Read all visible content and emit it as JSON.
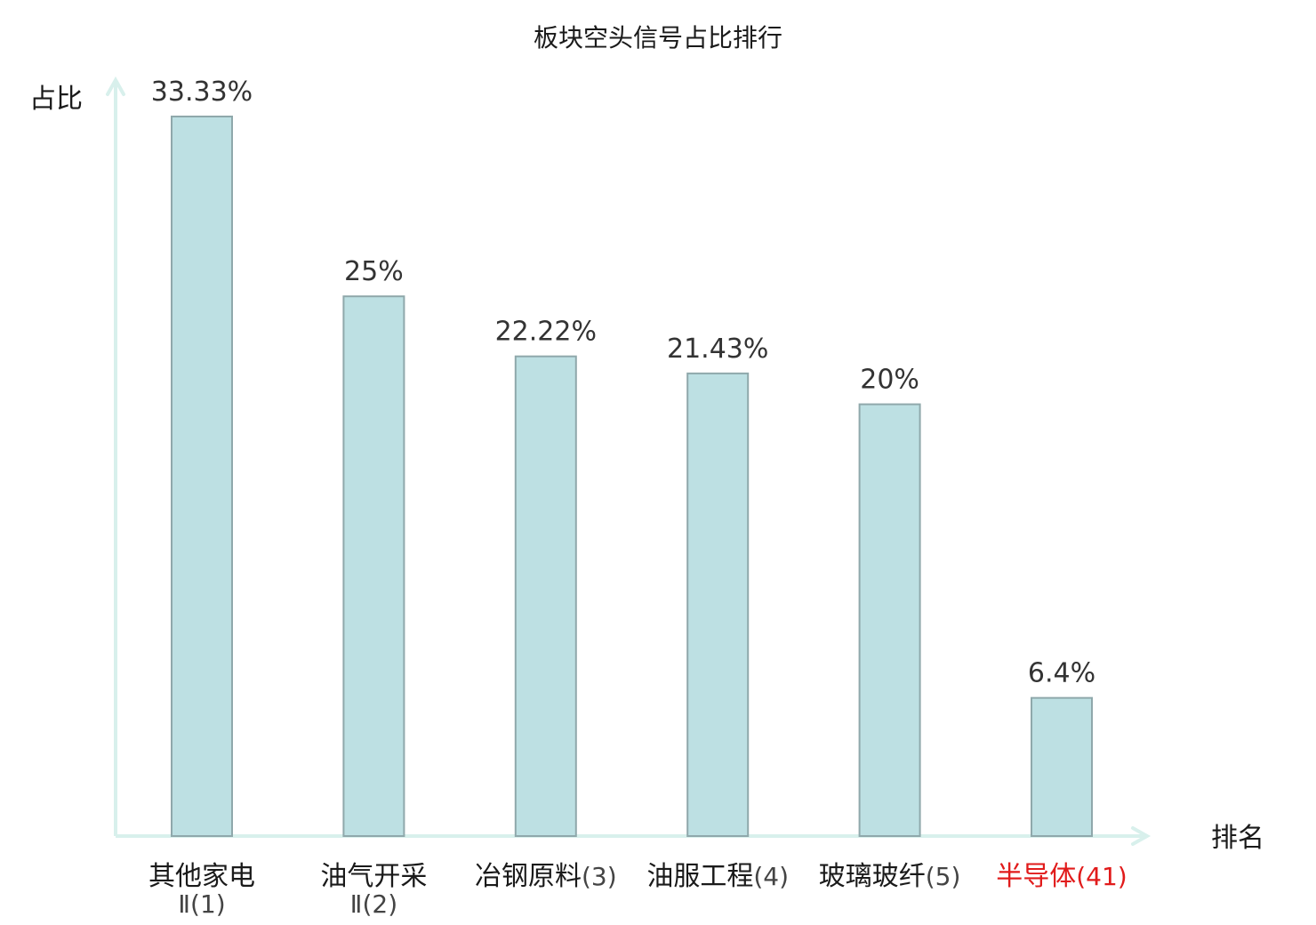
{
  "chart_data": {
    "type": "bar",
    "title": "板块空头信号占比排行",
    "ylabel": "占比",
    "xlabel": "排名",
    "ylim": [
      0,
      35
    ],
    "grid": false,
    "categories": [
      {
        "name": "其他家电",
        "name2": "Ⅱ",
        "rank": "(1)",
        "highlight": false
      },
      {
        "name": "油气开采",
        "name2": "Ⅱ",
        "rank": "(2)",
        "highlight": false
      },
      {
        "name": "冶钢原料",
        "name2": "",
        "rank": "(3)",
        "highlight": false
      },
      {
        "name": "油服工程",
        "name2": "",
        "rank": "(4)",
        "highlight": false
      },
      {
        "name": "玻璃玻纤",
        "name2": "",
        "rank": "(5)",
        "highlight": false
      },
      {
        "name": "半导体",
        "name2": "",
        "rank": "(41)",
        "highlight": true
      }
    ],
    "values": [
      33.33,
      25,
      22.22,
      21.43,
      20,
      6.4
    ],
    "value_labels": [
      "33.33%",
      "25%",
      "22.22%",
      "21.43%",
      "20%",
      "6.4%"
    ]
  },
  "colors": {
    "bar_fill": "#bde0e3",
    "bar_stroke": "#8fa8ab",
    "axis": "#d8f0ec",
    "text": "#1a1a1a",
    "highlight": "#e11b1b",
    "rank_text": "#444444"
  }
}
